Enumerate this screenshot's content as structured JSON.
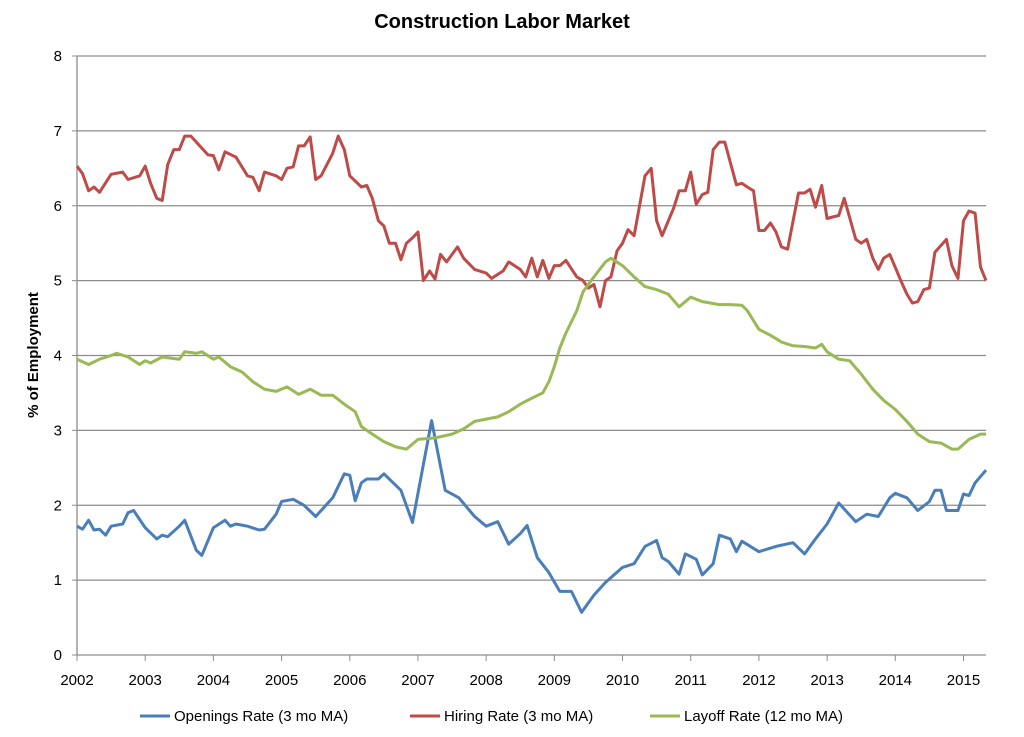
{
  "chart_data": {
    "type": "line",
    "title": "Construction Labor Market",
    "xlabel": "",
    "ylabel": "% of Employment",
    "xlim": [
      2002,
      2015.33
    ],
    "ylim": [
      0,
      8
    ],
    "x_ticks": [
      "2002",
      "2003",
      "2004",
      "2005",
      "2006",
      "2007",
      "2008",
      "2009",
      "2010",
      "2011",
      "2012",
      "2013",
      "2014",
      "2015"
    ],
    "y_ticks": [
      "0",
      "1",
      "2",
      "3",
      "4",
      "5",
      "6",
      "7",
      "8"
    ],
    "grid": "horizontal",
    "legend": "bottom",
    "series": [
      {
        "name": "Openings Rate (3 mo MA)",
        "color": "#4a7ebb",
        "x": [
          2002.0,
          2002.08,
          2002.17,
          2002.25,
          2002.33,
          2002.42,
          2002.5,
          2002.67,
          2002.75,
          2002.83,
          2003.0,
          2003.17,
          2003.25,
          2003.33,
          2003.5,
          2003.58,
          2003.75,
          2003.83,
          2004.0,
          2004.17,
          2004.25,
          2004.33,
          2004.5,
          2004.67,
          2004.75,
          2004.92,
          2005.0,
          2005.17,
          2005.33,
          2005.5,
          2005.75,
          2005.92,
          2006.0,
          2006.08,
          2006.17,
          2006.25,
          2006.42,
          2006.5,
          2006.75,
          2006.92,
          2007.2,
          2007.4,
          2007.6,
          2007.83,
          2008.0,
          2008.17,
          2008.33,
          2008.5,
          2008.6,
          2008.75,
          2008.92,
          2009.08,
          2009.25,
          2009.4,
          2009.58,
          2009.75,
          2010.0,
          2010.17,
          2010.33,
          2010.5,
          2010.58,
          2010.67,
          2010.83,
          2010.92,
          2011.08,
          2011.17,
          2011.33,
          2011.42,
          2011.58,
          2011.67,
          2011.75,
          2012.0,
          2012.25,
          2012.5,
          2012.67,
          2012.83,
          2013.0,
          2013.17,
          2013.42,
          2013.58,
          2013.75,
          2013.92,
          2014.0,
          2014.17,
          2014.33,
          2014.5,
          2014.58,
          2014.67,
          2014.75,
          2014.92,
          2015.0,
          2015.08,
          2015.17,
          2015.33
        ],
        "values": [
          1.72,
          1.68,
          1.8,
          1.67,
          1.68,
          1.6,
          1.72,
          1.75,
          1.9,
          1.93,
          1.7,
          1.55,
          1.6,
          1.58,
          1.72,
          1.8,
          1.4,
          1.33,
          1.7,
          1.8,
          1.72,
          1.75,
          1.72,
          1.67,
          1.68,
          1.88,
          2.05,
          2.08,
          2.0,
          1.85,
          2.1,
          2.42,
          2.4,
          2.06,
          2.3,
          2.35,
          2.35,
          2.42,
          2.2,
          1.77,
          3.13,
          2.2,
          2.1,
          1.85,
          1.72,
          1.78,
          1.48,
          1.62,
          1.73,
          1.3,
          1.1,
          0.85,
          0.85,
          0.57,
          0.8,
          0.97,
          1.17,
          1.22,
          1.45,
          1.53,
          1.3,
          1.25,
          1.08,
          1.35,
          1.28,
          1.07,
          1.22,
          1.6,
          1.55,
          1.38,
          1.52,
          1.38,
          1.45,
          1.5,
          1.35,
          1.55,
          1.75,
          2.03,
          1.78,
          1.88,
          1.85,
          2.1,
          2.16,
          2.1,
          1.93,
          2.05,
          2.2,
          2.2,
          1.93,
          1.93,
          2.15,
          2.13,
          2.3,
          2.47
        ]
      },
      {
        "name": "Hiring Rate (3 mo MA)",
        "color": "#be4b48",
        "x": [
          2002.0,
          2002.08,
          2002.17,
          2002.25,
          2002.33,
          2002.5,
          2002.67,
          2002.75,
          2002.92,
          2003.0,
          2003.08,
          2003.17,
          2003.25,
          2003.33,
          2003.42,
          2003.5,
          2003.58,
          2003.67,
          2003.83,
          2003.92,
          2004.0,
          2004.08,
          2004.17,
          2004.33,
          2004.5,
          2004.58,
          2004.67,
          2004.75,
          2004.92,
          2005.0,
          2005.08,
          2005.17,
          2005.25,
          2005.33,
          2005.42,
          2005.5,
          2005.58,
          2005.75,
          2005.83,
          2005.92,
          2006.0,
          2006.17,
          2006.25,
          2006.33,
          2006.42,
          2006.5,
          2006.58,
          2006.67,
          2006.75,
          2006.83,
          2006.92,
          2007.0,
          2007.08,
          2007.17,
          2007.25,
          2007.33,
          2007.42,
          2007.58,
          2007.67,
          2007.83,
          2008.0,
          2008.08,
          2008.25,
          2008.33,
          2008.5,
          2008.58,
          2008.67,
          2008.75,
          2008.83,
          2008.92,
          2009.0,
          2009.08,
          2009.17,
          2009.33,
          2009.42,
          2009.5,
          2009.58,
          2009.67,
          2009.75,
          2009.83,
          2009.92,
          2010.0,
          2010.08,
          2010.17,
          2010.33,
          2010.42,
          2010.5,
          2010.58,
          2010.75,
          2010.83,
          2010.92,
          2011.0,
          2011.08,
          2011.17,
          2011.25,
          2011.33,
          2011.42,
          2011.5,
          2011.67,
          2011.75,
          2011.83,
          2011.92,
          2012.0,
          2012.08,
          2012.17,
          2012.25,
          2012.33,
          2012.42,
          2012.58,
          2012.67,
          2012.75,
          2012.83,
          2012.92,
          2013.0,
          2013.08,
          2013.17,
          2013.25,
          2013.42,
          2013.5,
          2013.58,
          2013.67,
          2013.75,
          2013.83,
          2013.92,
          2014.08,
          2014.17,
          2014.25,
          2014.33,
          2014.42,
          2014.5,
          2014.58,
          2014.75,
          2014.83,
          2014.92,
          2015.0,
          2015.08,
          2015.17,
          2015.25,
          2015.33
        ],
        "values": [
          6.53,
          6.43,
          6.2,
          6.25,
          6.18,
          6.42,
          6.45,
          6.35,
          6.4,
          6.53,
          6.3,
          6.1,
          6.07,
          6.55,
          6.75,
          6.75,
          6.93,
          6.93,
          6.77,
          6.68,
          6.67,
          6.48,
          6.72,
          6.65,
          6.4,
          6.38,
          6.2,
          6.45,
          6.4,
          6.35,
          6.5,
          6.52,
          6.8,
          6.8,
          6.92,
          6.35,
          6.4,
          6.7,
          6.93,
          6.75,
          6.4,
          6.25,
          6.27,
          6.1,
          5.8,
          5.73,
          5.5,
          5.5,
          5.28,
          5.5,
          5.57,
          5.65,
          5.0,
          5.13,
          5.02,
          5.35,
          5.25,
          5.45,
          5.3,
          5.15,
          5.1,
          5.03,
          5.13,
          5.25,
          5.15,
          5.05,
          5.3,
          5.05,
          5.27,
          5.03,
          5.2,
          5.2,
          5.27,
          5.05,
          5.0,
          4.9,
          4.95,
          4.65,
          5.0,
          5.05,
          5.4,
          5.5,
          5.68,
          5.6,
          6.4,
          6.5,
          5.8,
          5.6,
          5.97,
          6.2,
          6.2,
          6.45,
          6.02,
          6.15,
          6.18,
          6.75,
          6.85,
          6.85,
          6.28,
          6.3,
          6.25,
          6.2,
          5.67,
          5.67,
          5.77,
          5.65,
          5.45,
          5.42,
          6.17,
          6.17,
          6.22,
          5.98,
          6.27,
          5.83,
          5.85,
          5.87,
          6.1,
          5.55,
          5.5,
          5.55,
          5.3,
          5.15,
          5.3,
          5.35,
          5.0,
          4.82,
          4.7,
          4.72,
          4.88,
          4.9,
          5.38,
          5.55,
          5.2,
          5.03,
          5.8,
          5.93,
          5.9,
          5.18,
          5.0
        ]
      },
      {
        "name": "Layoff Rate (12 mo MA)",
        "color": "#98b954",
        "x": [
          2002.0,
          2002.17,
          2002.33,
          2002.5,
          2002.58,
          2002.75,
          2002.92,
          2003.0,
          2003.08,
          2003.25,
          2003.5,
          2003.58,
          2003.75,
          2003.83,
          2004.0,
          2004.08,
          2004.25,
          2004.42,
          2004.58,
          2004.75,
          2004.92,
          2005.08,
          2005.25,
          2005.42,
          2005.58,
          2005.75,
          2005.92,
          2006.08,
          2006.17,
          2006.33,
          2006.5,
          2006.67,
          2006.83,
          2007.0,
          2007.25,
          2007.5,
          2007.67,
          2007.83,
          2008.0,
          2008.17,
          2008.33,
          2008.5,
          2008.67,
          2008.83,
          2008.92,
          2009.0,
          2009.08,
          2009.17,
          2009.33,
          2009.42,
          2009.58,
          2009.75,
          2009.83,
          2010.0,
          2010.17,
          2010.33,
          2010.5,
          2010.67,
          2010.83,
          2011.0,
          2011.17,
          2011.42,
          2011.58,
          2011.75,
          2011.83,
          2012.0,
          2012.17,
          2012.33,
          2012.5,
          2012.67,
          2012.83,
          2012.92,
          2013.0,
          2013.17,
          2013.33,
          2013.5,
          2013.67,
          2013.83,
          2014.0,
          2014.17,
          2014.33,
          2014.5,
          2014.67,
          2014.83,
          2014.92,
          2015.08,
          2015.25,
          2015.33
        ],
        "values": [
          3.95,
          3.88,
          3.95,
          4.0,
          4.03,
          3.98,
          3.88,
          3.93,
          3.9,
          3.98,
          3.95,
          4.05,
          4.03,
          4.05,
          3.95,
          3.98,
          3.85,
          3.78,
          3.65,
          3.55,
          3.52,
          3.58,
          3.48,
          3.55,
          3.47,
          3.47,
          3.35,
          3.25,
          3.05,
          2.95,
          2.85,
          2.78,
          2.75,
          2.88,
          2.9,
          2.95,
          3.02,
          3.12,
          3.15,
          3.18,
          3.25,
          3.35,
          3.43,
          3.5,
          3.65,
          3.85,
          4.1,
          4.3,
          4.6,
          4.85,
          5.05,
          5.25,
          5.3,
          5.2,
          5.05,
          4.92,
          4.88,
          4.82,
          4.65,
          4.78,
          4.72,
          4.68,
          4.68,
          4.67,
          4.6,
          4.35,
          4.27,
          4.18,
          4.13,
          4.12,
          4.1,
          4.15,
          4.05,
          3.95,
          3.93,
          3.75,
          3.55,
          3.4,
          3.28,
          3.12,
          2.95,
          2.85,
          2.83,
          2.75,
          2.75,
          2.88,
          2.95,
          2.95
        ]
      }
    ]
  }
}
